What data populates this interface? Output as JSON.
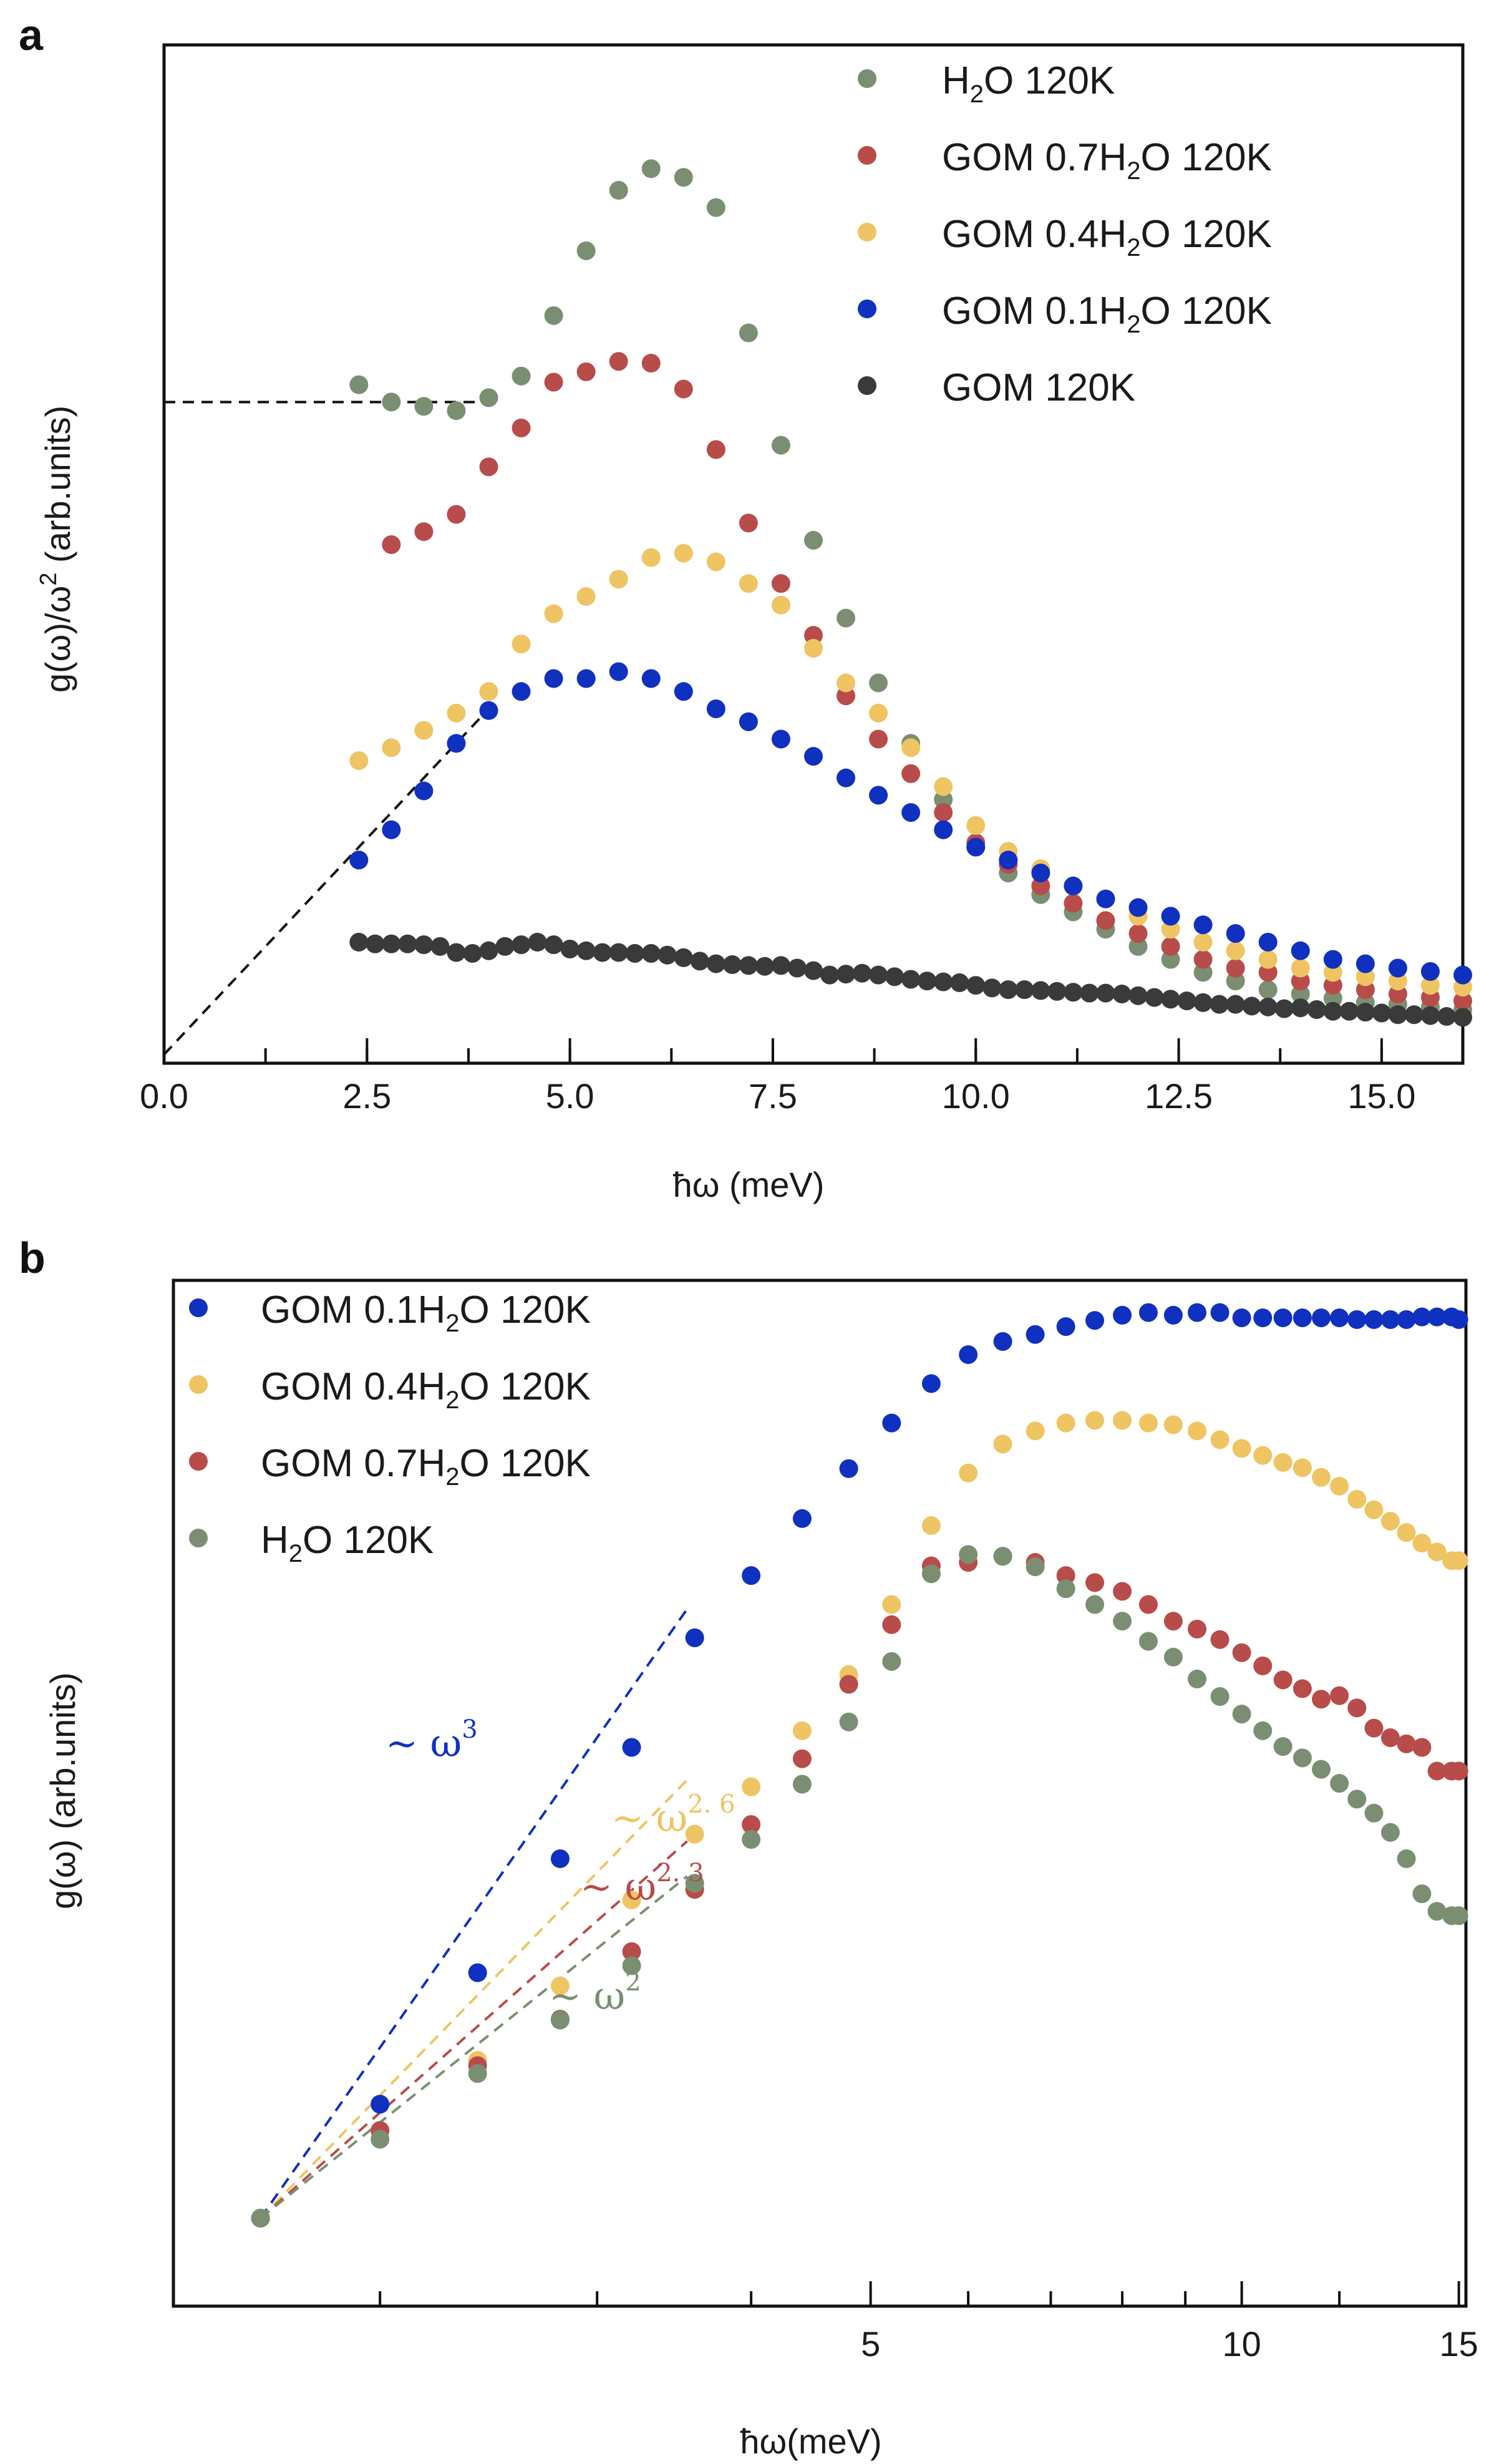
{
  "chart_data": [
    {
      "panel": "a",
      "type": "scatter",
      "xlabel": "ħω (meV)",
      "ylabel": "g(ω)/ω² (arb.units)",
      "xlim": [
        0,
        16
      ],
      "ylim": [
        0,
        1
      ],
      "x_ticks": [
        "0.0",
        "2.5",
        "5.0",
        "7.5",
        "10.0",
        "12.5",
        "15.0"
      ],
      "x_tick_values": [
        0,
        2.5,
        5,
        7.5,
        10,
        12.5,
        15
      ],
      "guides": [
        {
          "name": "horizontal-guide",
          "x": [
            0,
            4.0
          ],
          "y": [
            0.755,
            0.755
          ]
        },
        {
          "name": "linear-guide",
          "x": [
            0,
            4.0
          ],
          "y": [
            0,
            0.4
          ]
        }
      ],
      "series": [
        {
          "name": "H₂O 120K",
          "color": "#7a8f72",
          "x": [
            2.4,
            2.8,
            3.2,
            3.6,
            4.0,
            4.4,
            4.8,
            5.2,
            5.6,
            6.0,
            6.4,
            6.8,
            7.2,
            7.6,
            8.0,
            8.4,
            8.8,
            9.2,
            9.6,
            10.0,
            10.4,
            10.8,
            11.2,
            11.6,
            12.0,
            12.4,
            12.8,
            13.2,
            13.6,
            14.0,
            14.4,
            14.8,
            15.2,
            15.6,
            16.0
          ],
          "y": [
            0.775,
            0.755,
            0.75,
            0.745,
            0.76,
            0.785,
            0.855,
            0.93,
            1.0,
            1.025,
            1.015,
            0.98,
            0.835,
            0.705,
            0.595,
            0.505,
            0.43,
            0.36,
            0.295,
            0.24,
            0.21,
            0.185,
            0.165,
            0.145,
            0.125,
            0.11,
            0.095,
            0.085,
            0.075,
            0.07,
            0.065,
            0.06,
            0.058,
            0.055,
            0.052
          ]
        },
        {
          "name": "GOM 0.7H₂O 120K",
          "color": "#b84c4a",
          "x": [
            2.8,
            3.2,
            3.6,
            4.0,
            4.4,
            4.8,
            5.2,
            5.6,
            6.0,
            6.4,
            6.8,
            7.2,
            7.6,
            8.0,
            8.4,
            8.8,
            9.2,
            9.6,
            10.0,
            10.4,
            10.8,
            11.2,
            11.6,
            12.0,
            12.4,
            12.8,
            13.2,
            13.6,
            14.0,
            14.4,
            14.8,
            15.2,
            15.6,
            16.0
          ],
          "y": [
            0.59,
            0.605,
            0.625,
            0.68,
            0.725,
            0.778,
            0.79,
            0.802,
            0.8,
            0.77,
            0.7,
            0.615,
            0.545,
            0.485,
            0.415,
            0.365,
            0.325,
            0.28,
            0.245,
            0.22,
            0.195,
            0.175,
            0.155,
            0.14,
            0.125,
            0.11,
            0.1,
            0.095,
            0.085,
            0.08,
            0.075,
            0.07,
            0.066,
            0.062
          ]
        },
        {
          "name": "GOM 0.4H₂O 120K",
          "color": "#efc463",
          "x": [
            2.4,
            2.8,
            3.2,
            3.6,
            4.0,
            4.4,
            4.8,
            5.2,
            5.6,
            6.0,
            6.4,
            6.8,
            7.2,
            7.6,
            8.0,
            8.4,
            8.8,
            9.2,
            9.6,
            10.0,
            10.4,
            10.8,
            11.2,
            11.6,
            12.0,
            12.4,
            12.8,
            13.2,
            13.6,
            14.0,
            14.4,
            14.8,
            15.2,
            15.6,
            16.0
          ],
          "y": [
            0.34,
            0.355,
            0.375,
            0.395,
            0.42,
            0.475,
            0.51,
            0.53,
            0.55,
            0.575,
            0.58,
            0.57,
            0.545,
            0.52,
            0.47,
            0.43,
            0.395,
            0.355,
            0.31,
            0.265,
            0.235,
            0.215,
            0.195,
            0.18,
            0.16,
            0.145,
            0.13,
            0.12,
            0.11,
            0.1,
            0.095,
            0.09,
            0.085,
            0.08,
            0.078
          ]
        },
        {
          "name": "GOM 0.1H₂O 120K",
          "color": "#1030c0",
          "x": [
            2.4,
            2.8,
            3.2,
            3.6,
            4.0,
            4.4,
            4.8,
            5.2,
            5.6,
            6.0,
            6.4,
            6.8,
            7.2,
            7.6,
            8.0,
            8.4,
            8.8,
            9.2,
            9.6,
            10.0,
            10.4,
            10.8,
            11.2,
            11.6,
            12.0,
            12.4,
            12.8,
            13.2,
            13.6,
            14.0,
            14.4,
            14.8,
            15.2,
            15.6,
            16.0
          ],
          "y": [
            0.225,
            0.26,
            0.305,
            0.36,
            0.398,
            0.42,
            0.435,
            0.435,
            0.443,
            0.435,
            0.42,
            0.4,
            0.385,
            0.365,
            0.345,
            0.32,
            0.3,
            0.28,
            0.26,
            0.24,
            0.225,
            0.21,
            0.195,
            0.18,
            0.17,
            0.16,
            0.15,
            0.14,
            0.13,
            0.12,
            0.11,
            0.105,
            0.1,
            0.096,
            0.092
          ]
        },
        {
          "name": "GOM 120K",
          "color": "#3a3a3a",
          "x": [
            2.4,
            2.6,
            2.8,
            3.0,
            3.2,
            3.4,
            3.6,
            3.8,
            4.0,
            4.2,
            4.4,
            4.6,
            4.8,
            5.0,
            5.2,
            5.4,
            5.6,
            5.8,
            6.0,
            6.2,
            6.4,
            6.6,
            6.8,
            7.0,
            7.2,
            7.4,
            7.6,
            7.8,
            8.0,
            8.2,
            8.4,
            8.6,
            8.8,
            9.0,
            9.2,
            9.4,
            9.6,
            9.8,
            10.0,
            10.2,
            10.4,
            10.6,
            10.8,
            11.0,
            11.2,
            11.4,
            11.6,
            11.8,
            12.0,
            12.2,
            12.4,
            12.6,
            12.8,
            13.0,
            13.2,
            13.4,
            13.6,
            13.8,
            14.0,
            14.2,
            14.4,
            14.6,
            14.8,
            15.0,
            15.2,
            15.4,
            15.6,
            15.8,
            16.0
          ],
          "y": [
            0.13,
            0.128,
            0.128,
            0.128,
            0.127,
            0.125,
            0.118,
            0.117,
            0.12,
            0.125,
            0.127,
            0.13,
            0.127,
            0.122,
            0.12,
            0.118,
            0.118,
            0.117,
            0.117,
            0.115,
            0.112,
            0.108,
            0.105,
            0.104,
            0.103,
            0.102,
            0.103,
            0.1,
            0.097,
            0.092,
            0.093,
            0.094,
            0.092,
            0.09,
            0.087,
            0.085,
            0.084,
            0.083,
            0.08,
            0.077,
            0.075,
            0.075,
            0.074,
            0.073,
            0.072,
            0.071,
            0.071,
            0.07,
            0.068,
            0.066,
            0.064,
            0.062,
            0.06,
            0.058,
            0.058,
            0.056,
            0.055,
            0.053,
            0.054,
            0.052,
            0.05,
            0.05,
            0.049,
            0.048,
            0.046,
            0.046,
            0.045,
            0.044,
            0.043
          ]
        }
      ]
    },
    {
      "panel": "b",
      "type": "scatter",
      "xscale": "log",
      "xlabel": "ħω(meV)",
      "ylabel": "g(ω) (arb.units)",
      "xlim": [
        1.5,
        15
      ],
      "ylim": [
        0,
        1
      ],
      "x_ticks": [
        "5",
        "10",
        "15"
      ],
      "x_tick_values": [
        5,
        10,
        15
      ],
      "x_minor_tick_values": [
        2,
        3,
        4,
        6,
        7,
        8,
        9,
        12
      ],
      "annotations": [
        {
          "prefix": "~",
          "base": "ω",
          "exponent": "3",
          "color": "#1030c0"
        },
        {
          "prefix": "~",
          "base": "ω",
          "exponent": "2. 6",
          "color": "#efc463"
        },
        {
          "prefix": "~",
          "base": "ω",
          "exponent": "2. 3",
          "color": "#b84c4a"
        },
        {
          "prefix": "~",
          "base": "ω",
          "exponent": "2",
          "color": "#7a8f72"
        }
      ],
      "fits": [
        {
          "name": "fit-omega-3",
          "color": "#1030c0",
          "x": [
            1.6,
            3.55
          ],
          "y": [
            0.0,
            0.695
          ]
        },
        {
          "name": "fit-omega-2-6",
          "color": "#efc463",
          "x": [
            1.6,
            3.55
          ],
          "y": [
            0.0,
            0.5
          ]
        },
        {
          "name": "fit-omega-2-3",
          "color": "#b84c4a",
          "x": [
            1.6,
            3.55
          ],
          "y": [
            0.0,
            0.43
          ]
        },
        {
          "name": "fit-omega-2",
          "color": "#7a8f72",
          "x": [
            1.6,
            3.55
          ],
          "y": [
            0.0,
            0.39
          ]
        }
      ],
      "series": [
        {
          "name": "GOM 0.1H₂O 120K",
          "color": "#1030c0",
          "x": [
            1.6,
            2.0,
            2.4,
            2.8,
            3.2,
            3.6,
            4.0,
            4.4,
            4.8,
            5.2,
            5.6,
            6.0,
            6.4,
            6.8,
            7.2,
            7.6,
            8.0,
            8.4,
            8.8,
            9.2,
            9.6,
            10.0,
            10.4,
            10.8,
            11.2,
            11.6,
            12.0,
            12.4,
            12.8,
            13.2,
            13.6,
            14.0,
            14.4,
            14.8,
            15.0
          ],
          "y": [
            0.0,
            0.13,
            0.28,
            0.41,
            0.537,
            0.662,
            0.733,
            0.798,
            0.855,
            0.907,
            0.952,
            0.985,
            1.0,
            1.008,
            1.017,
            1.024,
            1.03,
            1.033,
            1.03,
            1.033,
            1.033,
            1.027,
            1.027,
            1.027,
            1.027,
            1.027,
            1.027,
            1.025,
            1.025,
            1.025,
            1.025,
            1.028,
            1.028,
            1.028,
            1.025
          ]
        },
        {
          "name": "GOM 0.4H₂O 120K",
          "color": "#efc463",
          "x": [
            1.6,
            2.0,
            2.4,
            2.8,
            3.2,
            3.6,
            4.0,
            4.4,
            4.8,
            5.2,
            5.6,
            6.0,
            6.4,
            6.8,
            7.2,
            7.6,
            8.0,
            8.4,
            8.8,
            9.2,
            9.6,
            10.0,
            10.4,
            10.8,
            11.2,
            11.6,
            12.0,
            12.4,
            12.8,
            13.2,
            13.6,
            14.0,
            14.4,
            14.8,
            15.0
          ],
          "y": [
            0.0,
            0.1,
            0.18,
            0.265,
            0.363,
            0.438,
            0.492,
            0.556,
            0.62,
            0.7,
            0.79,
            0.85,
            0.883,
            0.898,
            0.907,
            0.91,
            0.91,
            0.907,
            0.905,
            0.898,
            0.888,
            0.878,
            0.87,
            0.862,
            0.856,
            0.845,
            0.835,
            0.82,
            0.808,
            0.795,
            0.782,
            0.77,
            0.76,
            0.75,
            0.75
          ]
        },
        {
          "name": "GOM 0.7H₂O 120K",
          "color": "#b84c4a",
          "x": [
            1.6,
            2.0,
            2.4,
            2.8,
            3.2,
            3.6,
            4.0,
            4.4,
            4.8,
            5.2,
            5.6,
            6.0,
            6.4,
            6.8,
            7.2,
            7.6,
            8.0,
            8.4,
            8.8,
            9.2,
            9.6,
            10.0,
            10.4,
            10.8,
            11.2,
            11.6,
            12.0,
            12.4,
            12.8,
            13.2,
            13.6,
            14.0,
            14.4,
            14.8,
            15.0
          ],
          "y": [
            0.0,
            0.1,
            0.174,
            0.227,
            0.304,
            0.375,
            0.449,
            0.524,
            0.609,
            0.677,
            0.744,
            0.748,
            0.755,
            0.748,
            0.733,
            0.725,
            0.715,
            0.7,
            0.681,
            0.672,
            0.66,
            0.645,
            0.63,
            0.614,
            0.604,
            0.592,
            0.596,
            0.582,
            0.559,
            0.548,
            0.541,
            0.537,
            0.51,
            0.51,
            0.51
          ]
        },
        {
          "name": "H₂O 120K",
          "color": "#7a8f72",
          "x": [
            1.6,
            2.0,
            2.4,
            2.8,
            3.2,
            3.6,
            4.0,
            4.4,
            4.8,
            5.2,
            5.6,
            6.0,
            6.4,
            6.8,
            7.2,
            7.6,
            8.0,
            8.4,
            8.8,
            9.2,
            9.6,
            10.0,
            10.4,
            10.8,
            11.2,
            11.6,
            12.0,
            12.4,
            12.8,
            13.2,
            13.6,
            14.0,
            14.4,
            14.8,
            15.0
          ],
          "y": [
            0.0,
            0.09,
            0.165,
            0.226,
            0.288,
            0.382,
            0.432,
            0.495,
            0.566,
            0.635,
            0.735,
            0.757,
            0.755,
            0.743,
            0.718,
            0.7,
            0.681,
            0.658,
            0.64,
            0.615,
            0.595,
            0.575,
            0.556,
            0.538,
            0.525,
            0.512,
            0.496,
            0.478,
            0.462,
            0.44,
            0.41,
            0.37,
            0.35,
            0.345,
            0.345
          ]
        }
      ]
    }
  ],
  "panels": {
    "a": {
      "label": "a",
      "legend": [
        {
          "pre": "H",
          "sub": "2",
          "post": "O 120K",
          "color": "#7a8f72"
        },
        {
          "pre": "GOM 0.7H",
          "sub": "2",
          "post": "O 120K",
          "color": "#b84c4a"
        },
        {
          "pre": "GOM 0.4H",
          "sub": "2",
          "post": "O 120K",
          "color": "#efc463"
        },
        {
          "pre": "GOM 0.1H",
          "sub": "2",
          "post": "O 120K",
          "color": "#1030c0"
        },
        {
          "pre": "GOM 120K",
          "sub": "",
          "post": "",
          "color": "#3a3a3a"
        }
      ],
      "ylabel_parts": {
        "main": "g(ω)/ω",
        "sup": "2",
        "tail": " (arb.units)"
      }
    },
    "b": {
      "label": "b",
      "legend": [
        {
          "pre": "GOM 0.1H",
          "sub": "2",
          "post": "O 120K",
          "color": "#1030c0"
        },
        {
          "pre": "GOM 0.4H",
          "sub": "2",
          "post": "O 120K",
          "color": "#efc463"
        },
        {
          "pre": "GOM 0.7H",
          "sub": "2",
          "post": "O 120K",
          "color": "#b84c4a"
        },
        {
          "pre": "H",
          "sub": "2",
          "post": "O 120K",
          "color": "#7a8f72"
        }
      ]
    }
  }
}
